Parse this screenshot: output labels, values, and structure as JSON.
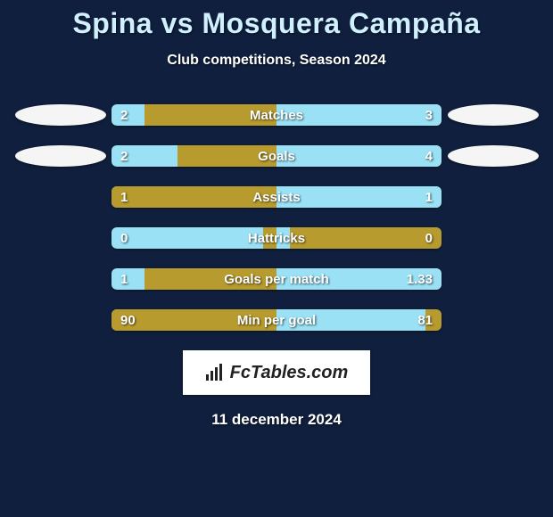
{
  "header": {
    "title": "Spina vs Mosquera Campaña",
    "subtitle": "Club competitions, Season 2024",
    "title_color": "#d0f0ff",
    "subtitle_color": "#ffffff"
  },
  "background_color": "#0f1f3d",
  "colors": {
    "left_fill": "#b79b2f",
    "right_fill": "#9ae1f6",
    "left_bg": "#9ae1f6",
    "right_bg": "#b79b2f",
    "text": "#ffffff"
  },
  "stats": [
    {
      "label": "Matches",
      "left_val": "2",
      "right_val": "3",
      "left_pct": 40,
      "right_pct": 50,
      "show_left_avatar": true,
      "show_right_avatar": true
    },
    {
      "label": "Goals",
      "left_val": "2",
      "right_val": "4",
      "left_pct": 30,
      "right_pct": 50,
      "show_left_avatar": true,
      "show_right_avatar": true
    },
    {
      "label": "Assists",
      "left_val": "1",
      "right_val": "1",
      "left_pct": 50,
      "right_pct": 50,
      "show_left_avatar": false,
      "show_right_avatar": false
    },
    {
      "label": "Hattricks",
      "left_val": "0",
      "right_val": "0",
      "left_pct": 4,
      "right_pct": 4,
      "show_left_avatar": false,
      "show_right_avatar": false
    },
    {
      "label": "Goals per match",
      "left_val": "1",
      "right_val": "1.33",
      "left_pct": 40,
      "right_pct": 50,
      "show_left_avatar": false,
      "show_right_avatar": false
    },
    {
      "label": "Min per goal",
      "left_val": "90",
      "right_val": "81",
      "left_pct": 50,
      "right_pct": 45,
      "show_left_avatar": false,
      "show_right_avatar": false
    }
  ],
  "footer": {
    "logo_text": "FcTables.com",
    "date": "11 december 2024"
  }
}
